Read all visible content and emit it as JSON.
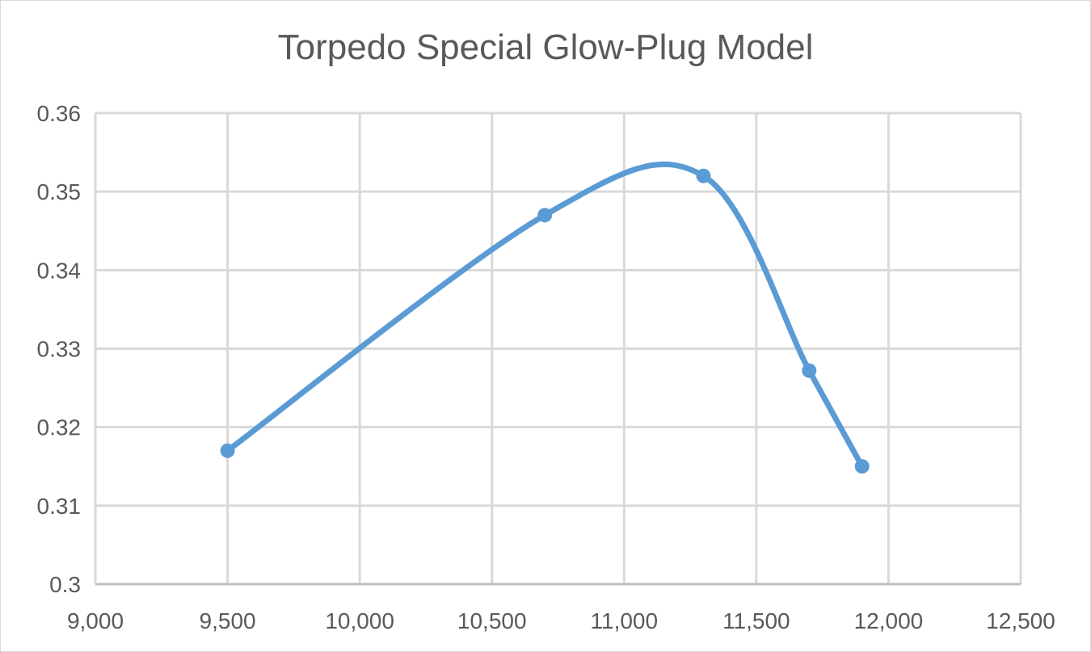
{
  "chart_data": {
    "type": "line",
    "title": "Torpedo Special Glow-Plug Model",
    "xlabel": "",
    "ylabel": "",
    "xlim": [
      9000,
      12500
    ],
    "ylim": [
      0.3,
      0.36
    ],
    "x_ticks": [
      "9,000",
      "9,500",
      "10,000",
      "10,500",
      "11,000",
      "11,500",
      "12,000",
      "12,500"
    ],
    "x_tick_values": [
      9000,
      9500,
      10000,
      10500,
      11000,
      11500,
      12000,
      12500
    ],
    "y_ticks": [
      "0.3",
      "0.31",
      "0.32",
      "0.33",
      "0.34",
      "0.35",
      "0.36"
    ],
    "y_tick_values": [
      0.3,
      0.31,
      0.32,
      0.33,
      0.34,
      0.35,
      0.36
    ],
    "grid": true,
    "legend": "none",
    "smooth": true,
    "series": [
      {
        "color": "#5b9bd5",
        "points": [
          {
            "x": 9500,
            "y": 0.317
          },
          {
            "x": 10700,
            "y": 0.347
          },
          {
            "x": 11300,
            "y": 0.352
          },
          {
            "x": 11700,
            "y": 0.3272
          },
          {
            "x": 11900,
            "y": 0.315
          }
        ]
      }
    ]
  }
}
